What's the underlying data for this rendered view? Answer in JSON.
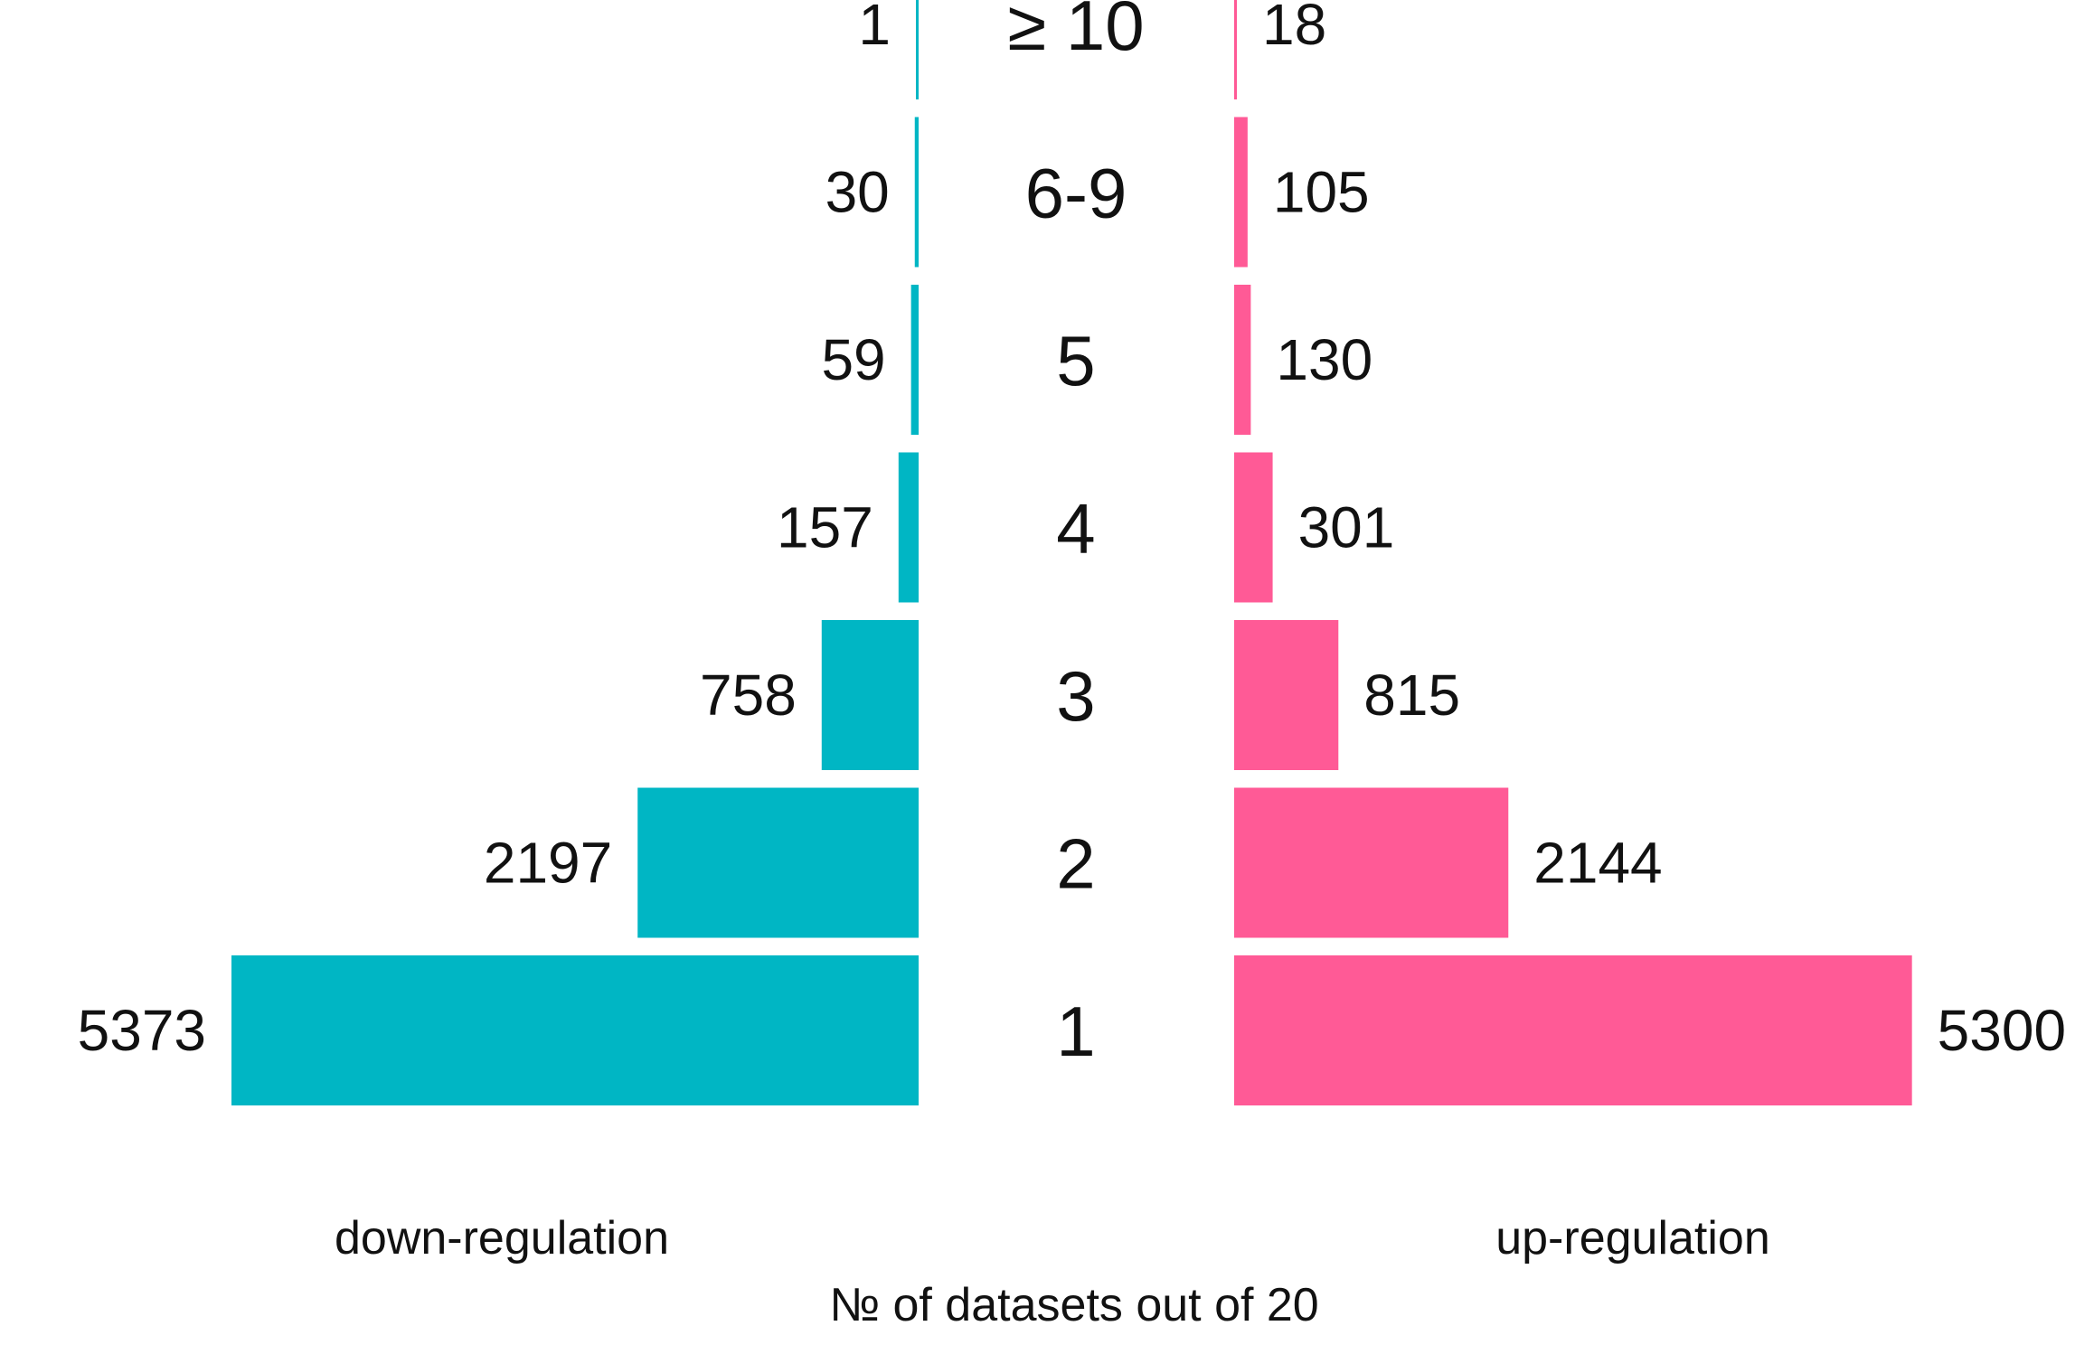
{
  "chart_data": {
    "type": "bar",
    "orientation": "horizontal-back-to-back",
    "categories": [
      "1",
      "2",
      "3",
      "4",
      "5",
      "6-9",
      "≥ 10"
    ],
    "series": [
      {
        "name": "down-regulation",
        "color": "#00b6c4",
        "side": "left",
        "values": [
          5373,
          2197,
          758,
          157,
          59,
          30,
          1
        ]
      },
      {
        "name": "up-regulation",
        "color": "#ff5a96",
        "side": "right",
        "values": [
          5300,
          2144,
          815,
          301,
          130,
          105,
          18
        ]
      }
    ],
    "xlabel": "№ of datasets out of 20",
    "grid": false,
    "legend": "below each side"
  }
}
